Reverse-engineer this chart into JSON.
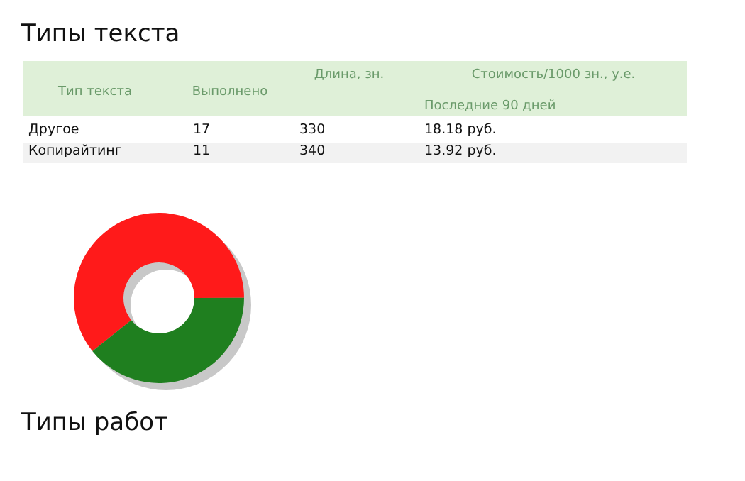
{
  "chart_data": [
    {
      "type": "other",
      "title": "Типы текста",
      "annotations": [
        "Тип текста",
        "Выполнено",
        "Длина, зн.",
        "Стоимость/1000 зн., у.е.",
        "Последние 90 дней",
        "Другое",
        "17",
        "330",
        "18.18 руб.",
        "Копирайтинг",
        "11",
        "340",
        "13.92 руб.",
        "Типы работ"
      ]
    },
    {
      "type": "donut",
      "categories": [
        null,
        null
      ],
      "values": [
        60.7,
        39.3
      ],
      "colors": [
        "#ff1a1a",
        "#1f7f1f"
      ]
    }
  ]
}
